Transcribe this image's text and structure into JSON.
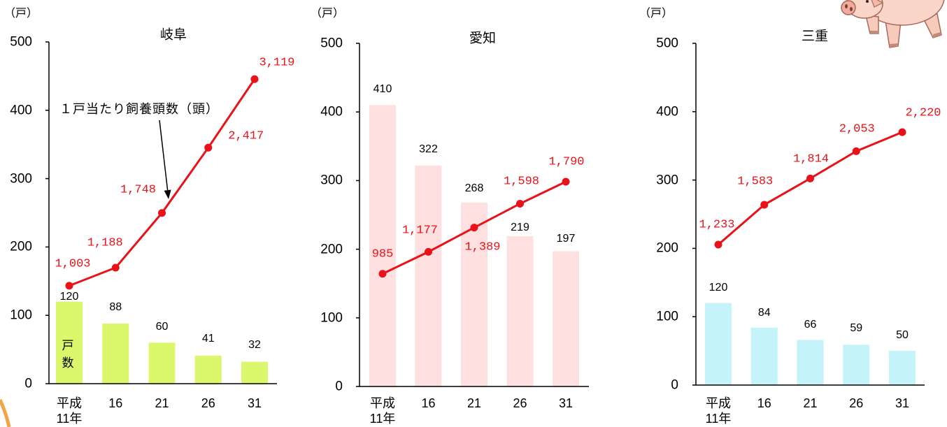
{
  "chart_data": [
    {
      "type": "bar",
      "title": "岐阜",
      "ylabel": "（戸）",
      "categories": [
        "平成\n11年",
        "16",
        "21",
        "26",
        "31"
      ],
      "ylim": [
        0,
        500
      ],
      "yticks": [
        "0",
        "100",
        "200",
        "300",
        "400",
        "500"
      ],
      "grid": false,
      "series": [
        {
          "name": "戸数",
          "type": "bar",
          "values": [
            120,
            88,
            60,
            41,
            32
          ],
          "color": "#dbf86c"
        },
        {
          "name": "１戸当たり飼養頭数（頭）",
          "type": "line",
          "values": [
            1003,
            1188,
            1748,
            2417,
            3119
          ],
          "labels": [
            "1,003",
            "1,188",
            "1,748",
            "2,417",
            "3,119"
          ],
          "color": "#ea1119",
          "y2lim": [
            0,
            3500
          ]
        }
      ]
    },
    {
      "type": "bar",
      "title": "愛知",
      "ylabel": "（戸）",
      "categories": [
        "平成\n11年",
        "16",
        "21",
        "26",
        "31"
      ],
      "ylim": [
        0,
        500
      ],
      "yticks": [
        "0",
        "100",
        "200",
        "300",
        "400",
        "500"
      ],
      "grid": false,
      "series": [
        {
          "type": "bar",
          "values": [
            410,
            322,
            268,
            219,
            197
          ],
          "color": "#fde0df"
        },
        {
          "type": "line",
          "values": [
            985,
            1177,
            1389,
            1598,
            1790
          ],
          "labels": [
            "985",
            "1,177",
            "1,389",
            "1,598",
            "1,790"
          ],
          "color": "#ea1119",
          "y2lim": [
            0,
            3000
          ]
        }
      ]
    },
    {
      "type": "bar",
      "title": "三重",
      "ylabel": "（戸）",
      "categories": [
        "平成\n11年",
        "16",
        "21",
        "26",
        "31"
      ],
      "ylim": [
        0,
        500
      ],
      "yticks": [
        "0",
        "100",
        "200",
        "300",
        "400",
        "500"
      ],
      "grid": false,
      "series": [
        {
          "type": "bar",
          "values": [
            120,
            84,
            66,
            59,
            50
          ],
          "color": "#c4f3fa"
        },
        {
          "type": "line",
          "values": [
            1233,
            1583,
            1814,
            2053,
            2220
          ],
          "labels": [
            "1,233",
            "1,583",
            "1,814",
            "2,053",
            "2,220"
          ],
          "color": "#ea1119",
          "y2lim": [
            0,
            3000
          ]
        }
      ]
    }
  ],
  "illustration": "pig-icon"
}
